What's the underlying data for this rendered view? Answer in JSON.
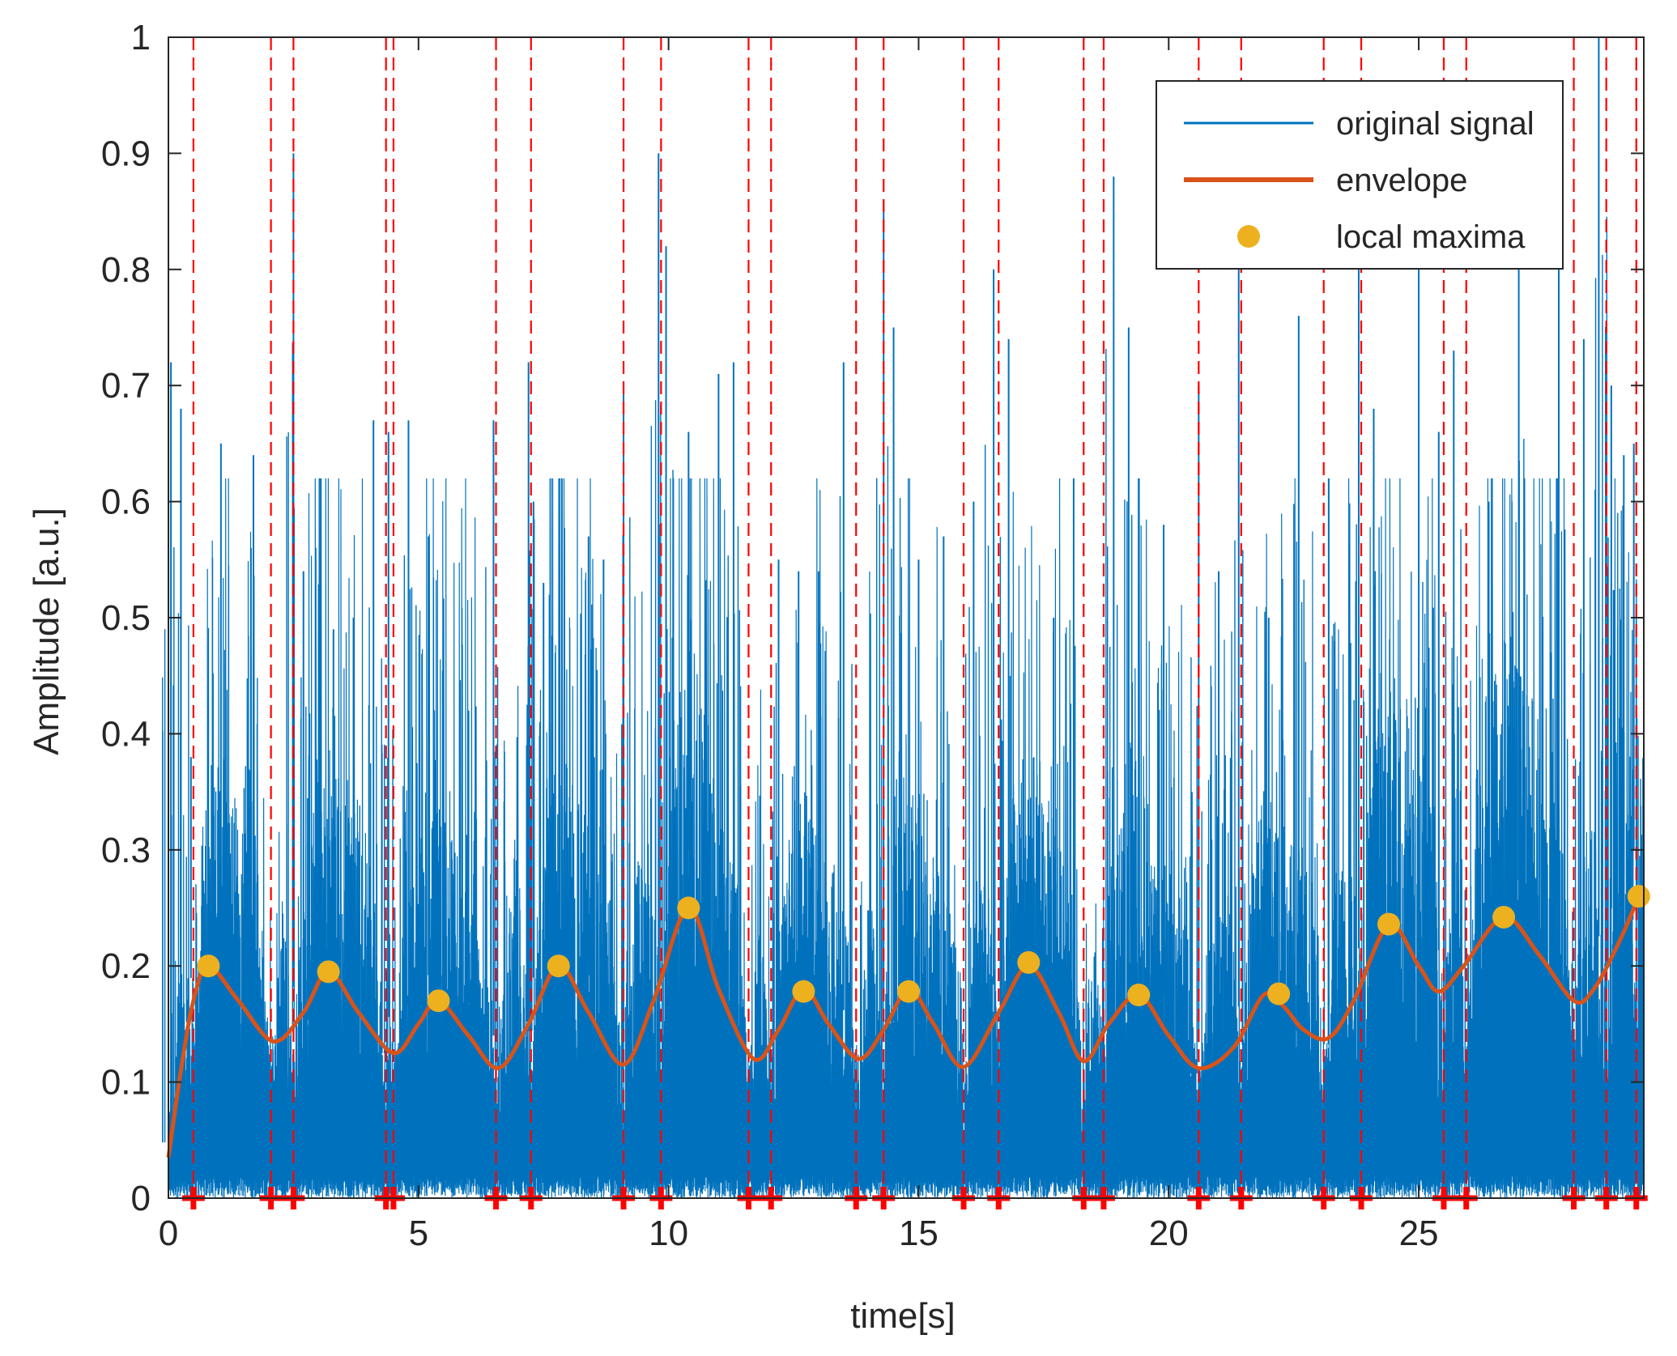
{
  "chart_data": {
    "type": "line",
    "title": "",
    "xlabel": "time[s]",
    "ylabel": "Amplitude [a.u.]",
    "xlim": [
      0,
      29.5
    ],
    "ylim": [
      0,
      1
    ],
    "xticks": [
      0,
      5,
      10,
      15,
      20,
      25
    ],
    "xtick_labels": [
      "0",
      "5",
      "10",
      "15",
      "20",
      "25"
    ],
    "yticks": [
      0,
      0.1,
      0.2,
      0.3,
      0.4,
      0.5,
      0.6,
      0.7,
      0.8,
      0.9,
      1
    ],
    "ytick_labels": [
      "0",
      "0.1",
      "0.2",
      "0.3",
      "0.4",
      "0.5",
      "0.6",
      "0.7",
      "0.8",
      "0.9",
      "1"
    ],
    "grid": false,
    "legend_position": "top-right",
    "colors": {
      "signal": "#0072BD",
      "envelope": "#D95319",
      "maxima": "#EDB120",
      "markers": "#FF0000",
      "axis": "#262626"
    },
    "legend": [
      {
        "label": "original signal",
        "style": "line",
        "color": "#0072BD"
      },
      {
        "label": "envelope",
        "style": "thick-line",
        "color": "#D95319"
      },
      {
        "label": "local maxima",
        "style": "dot",
        "color": "#EDB120"
      }
    ],
    "series": [
      {
        "name": "original signal",
        "kind": "noise-signal",
        "x_range": [
          0,
          29.5
        ],
        "peaks": [
          {
            "x": 0.05,
            "y": 0.72
          },
          {
            "x": 0.25,
            "y": 0.68
          },
          {
            "x": 0.45,
            "y": 0.38
          },
          {
            "x": 1.05,
            "y": 0.65
          },
          {
            "x": 1.7,
            "y": 0.64
          },
          {
            "x": 1.65,
            "y": 0.56
          },
          {
            "x": 2.5,
            "y": 0.9
          },
          {
            "x": 2.7,
            "y": 0.54
          },
          {
            "x": 3.3,
            "y": 0.49
          },
          {
            "x": 3.7,
            "y": 0.5
          },
          {
            "x": 4.1,
            "y": 0.67
          },
          {
            "x": 4.4,
            "y": 0.66
          },
          {
            "x": 4.8,
            "y": 0.67
          },
          {
            "x": 5.2,
            "y": 0.57
          },
          {
            "x": 6.0,
            "y": 0.42
          },
          {
            "x": 6.5,
            "y": 0.67
          },
          {
            "x": 7.2,
            "y": 0.72
          },
          {
            "x": 7.3,
            "y": 0.6
          },
          {
            "x": 7.5,
            "y": 0.53
          },
          {
            "x": 8.4,
            "y": 0.57
          },
          {
            "x": 8.7,
            "y": 0.55
          },
          {
            "x": 9.1,
            "y": 0.7
          },
          {
            "x": 9.8,
            "y": 0.9
          },
          {
            "x": 9.95,
            "y": 0.82
          },
          {
            "x": 10.4,
            "y": 0.66
          },
          {
            "x": 11.0,
            "y": 0.71
          },
          {
            "x": 11.3,
            "y": 0.72
          },
          {
            "x": 12.2,
            "y": 0.55
          },
          {
            "x": 12.6,
            "y": 0.54
          },
          {
            "x": 13.0,
            "y": 0.54
          },
          {
            "x": 13.5,
            "y": 0.72
          },
          {
            "x": 14.3,
            "y": 0.86
          },
          {
            "x": 14.5,
            "y": 0.75
          },
          {
            "x": 15.0,
            "y": 0.55
          },
          {
            "x": 15.5,
            "y": 0.57
          },
          {
            "x": 16.1,
            "y": 0.6
          },
          {
            "x": 16.5,
            "y": 0.8
          },
          {
            "x": 16.8,
            "y": 0.74
          },
          {
            "x": 17.7,
            "y": 0.5
          },
          {
            "x": 18.1,
            "y": 0.62
          },
          {
            "x": 18.9,
            "y": 0.88
          },
          {
            "x": 19.2,
            "y": 0.75
          },
          {
            "x": 19.9,
            "y": 0.58
          },
          {
            "x": 20.6,
            "y": 0.7
          },
          {
            "x": 21.0,
            "y": 0.54
          },
          {
            "x": 21.4,
            "y": 0.8
          },
          {
            "x": 22.0,
            "y": 0.5
          },
          {
            "x": 22.6,
            "y": 0.76
          },
          {
            "x": 23.2,
            "y": 0.62
          },
          {
            "x": 23.8,
            "y": 0.8
          },
          {
            "x": 24.1,
            "y": 0.68
          },
          {
            "x": 25.0,
            "y": 0.8
          },
          {
            "x": 25.4,
            "y": 0.66
          },
          {
            "x": 25.7,
            "y": 0.73
          },
          {
            "x": 26.4,
            "y": 0.6
          },
          {
            "x": 27.0,
            "y": 0.8
          },
          {
            "x": 27.8,
            "y": 0.8
          },
          {
            "x": 28.3,
            "y": 0.74
          },
          {
            "x": 28.6,
            "y": 1.0
          },
          {
            "x": 28.85,
            "y": 0.7
          },
          {
            "x": 29.1,
            "y": 0.64
          },
          {
            "x": 29.3,
            "y": 0.65
          }
        ]
      },
      {
        "name": "envelope",
        "x": [
          0,
          0.25,
          0.5,
          0.8,
          1.4,
          2.1,
          2.7,
          3.2,
          3.8,
          4.5,
          5.0,
          5.4,
          6.0,
          6.6,
          7.2,
          7.8,
          8.4,
          9.1,
          9.7,
          10.4,
          11.0,
          11.7,
          12.2,
          12.7,
          13.2,
          13.8,
          14.3,
          14.8,
          15.3,
          15.9,
          16.6,
          17.2,
          17.8,
          18.3,
          18.8,
          19.4,
          20.0,
          20.6,
          21.3,
          21.9,
          22.3,
          22.7,
          23.2,
          23.7,
          24.4,
          25.0,
          25.4,
          25.9,
          26.7,
          27.4,
          28.1,
          28.5,
          29.0,
          29.4
        ],
        "values": [
          0.035,
          0.11,
          0.17,
          0.2,
          0.17,
          0.135,
          0.16,
          0.195,
          0.16,
          0.125,
          0.15,
          0.17,
          0.14,
          0.112,
          0.15,
          0.2,
          0.16,
          0.115,
          0.17,
          0.25,
          0.18,
          0.12,
          0.145,
          0.18,
          0.15,
          0.12,
          0.145,
          0.18,
          0.15,
          0.113,
          0.16,
          0.2,
          0.16,
          0.118,
          0.15,
          0.175,
          0.14,
          0.112,
          0.13,
          0.175,
          0.165,
          0.145,
          0.138,
          0.17,
          0.235,
          0.2,
          0.178,
          0.2,
          0.242,
          0.21,
          0.17,
          0.18,
          0.22,
          0.26
        ]
      },
      {
        "name": "local maxima",
        "x": [
          0.8,
          3.2,
          5.4,
          7.8,
          10.4,
          12.7,
          14.8,
          17.2,
          19.4,
          22.2,
          24.4,
          26.7,
          29.4
        ],
        "values": [
          0.2,
          0.195,
          0.17,
          0.2,
          0.25,
          0.178,
          0.178,
          0.203,
          0.175,
          0.176,
          0.236,
          0.242,
          0.26
        ]
      }
    ],
    "boundaries": [
      0.5,
      2.05,
      2.5,
      4.35,
      4.5,
      6.55,
      7.25,
      9.1,
      9.85,
      11.6,
      12.05,
      13.75,
      14.3,
      15.9,
      16.6,
      18.3,
      18.7,
      20.6,
      21.45,
      23.1,
      23.85,
      25.5,
      25.95,
      28.1,
      28.75,
      29.35
    ]
  }
}
